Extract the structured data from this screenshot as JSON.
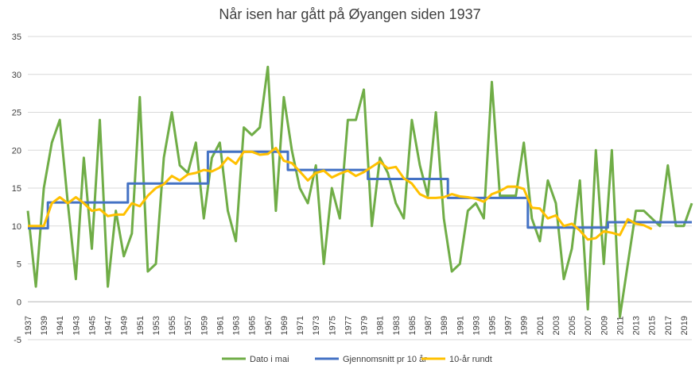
{
  "chart_data": {
    "type": "line",
    "title": "Når isen har gått på Øyangen siden 1937",
    "xlabel": "",
    "ylabel": "",
    "ylim": [
      -5,
      35
    ],
    "yticks": [
      -5,
      0,
      5,
      10,
      15,
      20,
      25,
      30,
      35
    ],
    "x_start": 1937,
    "x_end": 2020,
    "xtick_labels": [
      "1937",
      "1939",
      "1941",
      "1943",
      "1945",
      "1947",
      "1949",
      "1951",
      "1953",
      "1955",
      "1957",
      "1959",
      "1961",
      "1963",
      "1965",
      "1967",
      "1969",
      "1971",
      "1973",
      "1975",
      "1977",
      "1979",
      "1981",
      "1983",
      "1985",
      "1987",
      "1989",
      "1991",
      "1993",
      "1995",
      "1997",
      "1999",
      "2001",
      "2003",
      "2005",
      "2007",
      "2009",
      "2011",
      "2013",
      "2015",
      "2017",
      "2019"
    ],
    "grid": true,
    "legend_position": "bottom",
    "series": [
      {
        "name": "Dato i mai",
        "color": "#70AD47",
        "start_year": 1937,
        "values": [
          12,
          2,
          15,
          21,
          24,
          13,
          3,
          19,
          7,
          24,
          2,
          12,
          6,
          9,
          27,
          4,
          5,
          19,
          25,
          18,
          17,
          21,
          11,
          19,
          21,
          12,
          8,
          23,
          22,
          23,
          31,
          12,
          27,
          20,
          15,
          13,
          18,
          5,
          15,
          11,
          24,
          24,
          28,
          10,
          19,
          17,
          13,
          11,
          24,
          18,
          14,
          25,
          11,
          4,
          5,
          12,
          13,
          11,
          29,
          14,
          14,
          14,
          21,
          11,
          8,
          16,
          13,
          3,
          7,
          16,
          -1,
          20,
          5,
          20,
          -2,
          5,
          12,
          12,
          11,
          10,
          18,
          10,
          10,
          13
        ]
      },
      {
        "name": "Gjennomsnitt pr 10 år",
        "color": "#4472C4",
        "step": true,
        "segments": [
          {
            "from": 1937,
            "to": 1939.5,
            "value": 9.7
          },
          {
            "from": 1939.5,
            "to": 1949.5,
            "value": 13.1
          },
          {
            "from": 1949.5,
            "to": 1959.5,
            "value": 15.6
          },
          {
            "from": 1959.5,
            "to": 1969.5,
            "value": 19.8
          },
          {
            "from": 1969.5,
            "to": 1979.5,
            "value": 17.4
          },
          {
            "from": 1979.5,
            "to": 1989.5,
            "value": 16.2
          },
          {
            "from": 1989.5,
            "to": 1999.5,
            "value": 13.7
          },
          {
            "from": 1999.5,
            "to": 2009.5,
            "value": 9.8
          },
          {
            "from": 2009.5,
            "to": 2020,
            "value": 10.5
          }
        ]
      },
      {
        "name": "10-år rundt",
        "color": "#FFC000",
        "start_year": 1937,
        "values": [
          10,
          10,
          10,
          13,
          13.8,
          13,
          13.8,
          13,
          12,
          12.2,
          11.3,
          11.5,
          11.5,
          13,
          12.6,
          14,
          15,
          15.5,
          16.6,
          16,
          16.8,
          17,
          17.4,
          17.2,
          17.7,
          19,
          18.2,
          19.8,
          19.8,
          19.4,
          19.5,
          20.3,
          18.6,
          18.3,
          17.2,
          16,
          17,
          17.3,
          16.4,
          16.9,
          17.3,
          16.6,
          17.1,
          17.8,
          18.5,
          17.6,
          17.8,
          16.3,
          15.6,
          14.2,
          13.7,
          13.7,
          13.8,
          14.2,
          13.9,
          13.8,
          13.6,
          13.2,
          14.2,
          14.6,
          15.2,
          15.2,
          14.9,
          12.4,
          12.3,
          11,
          11.4,
          10,
          10.3,
          9.4,
          8.2,
          8.4,
          9.3,
          9.1,
          8.8,
          10.9,
          10.3,
          10.1,
          9.6
        ]
      }
    ]
  }
}
